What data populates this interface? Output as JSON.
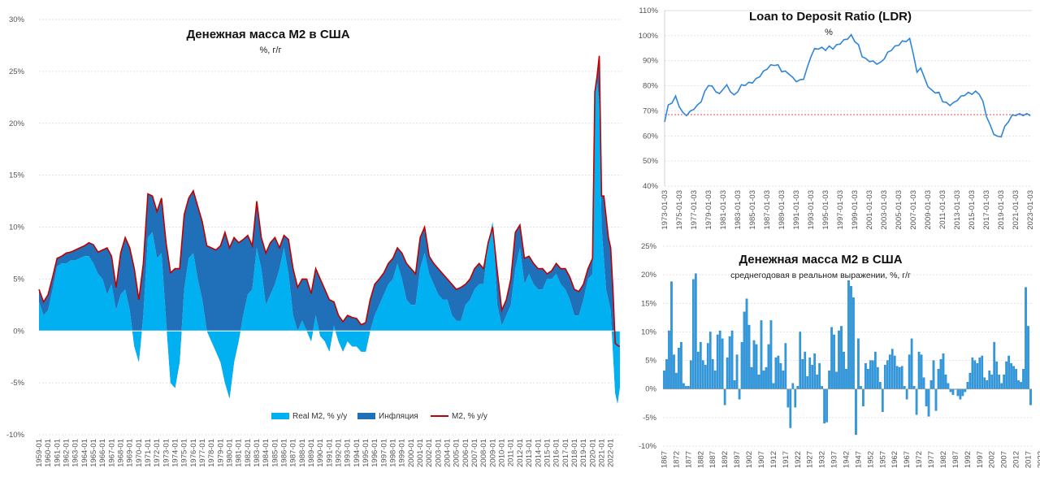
{
  "colors": {
    "real": "#00B0F0",
    "inflation": "#1F70B8",
    "m2_line": "#C00000",
    "ldr_line": "#2E86D9",
    "ldr_ref": "#E03030",
    "grid": "#D9D9D9",
    "bar": "#2E9BE0"
  },
  "chart_data": [
    {
      "type": "area",
      "title": "Денежная масса М2 в США",
      "subtitle": "%, г/г",
      "ylim": [
        -10,
        30
      ],
      "y_ticks": [
        "-10%",
        "-5%",
        "0%",
        "5%",
        "10%",
        "15%",
        "20%",
        "25%",
        "30%"
      ],
      "x_tick_labels": [
        "1959-01",
        "1960-01",
        "1961-01",
        "1962-01",
        "1963-01",
        "1964-01",
        "1965-01",
        "1966-01",
        "1967-01",
        "1968-01",
        "1969-01",
        "1970-01",
        "1971-01",
        "1972-01",
        "1973-01",
        "1974-01",
        "1975-01",
        "1976-01",
        "1977-01",
        "1978-01",
        "1979-01",
        "1980-01",
        "1981-01",
        "1982-01",
        "1983-01",
        "1984-01",
        "1985-01",
        "1986-01",
        "1987-01",
        "1988-01",
        "1989-01",
        "1990-01",
        "1991-01",
        "1992-01",
        "1993-01",
        "1994-01",
        "1995-01",
        "1996-01",
        "1997-01",
        "1998-01",
        "1999-01",
        "2000-01",
        "2001-01",
        "2002-01",
        "2003-01",
        "2004-01",
        "2005-01",
        "2006-01",
        "2007-01",
        "2008-01",
        "2009-01",
        "2010-01",
        "2011-01",
        "2012-01",
        "2013-01",
        "2014-01",
        "2015-01",
        "2016-01",
        "2017-01",
        "2018-01",
        "2019-01",
        "2020-01",
        "2021-01",
        "2022-01"
      ],
      "legend": [
        "Real M2, % y/y",
        "Инфляция",
        "M2, % y/y"
      ],
      "legend_position": "bottom",
      "x": [
        1959.0,
        1959.5,
        1960.0,
        1960.5,
        1961.0,
        1961.5,
        1962.0,
        1962.5,
        1963.0,
        1963.5,
        1964.0,
        1964.5,
        1965.0,
        1965.5,
        1966.0,
        1966.5,
        1967.0,
        1967.5,
        1968.0,
        1968.5,
        1969.0,
        1969.5,
        1970.0,
        1970.5,
        1971.0,
        1971.5,
        1972.0,
        1972.5,
        1973.0,
        1973.5,
        1974.0,
        1974.5,
        1975.0,
        1975.5,
        1976.0,
        1976.5,
        1977.0,
        1977.5,
        1978.0,
        1978.5,
        1979.0,
        1979.5,
        1980.0,
        1980.5,
        1981.0,
        1981.5,
        1982.0,
        1982.5,
        1983.0,
        1983.5,
        1984.0,
        1984.5,
        1985.0,
        1985.5,
        1986.0,
        1986.5,
        1987.0,
        1987.5,
        1988.0,
        1988.5,
        1989.0,
        1989.5,
        1990.0,
        1990.5,
        1991.0,
        1991.5,
        1992.0,
        1992.5,
        1993.0,
        1993.5,
        1994.0,
        1994.5,
        1995.0,
        1995.5,
        1996.0,
        1996.5,
        1997.0,
        1997.5,
        1998.0,
        1998.5,
        1999.0,
        1999.5,
        2000.0,
        2000.5,
        2001.0,
        2001.5,
        2002.0,
        2002.5,
        2003.0,
        2003.5,
        2004.0,
        2004.5,
        2005.0,
        2005.5,
        2006.0,
        2006.5,
        2007.0,
        2007.5,
        2008.0,
        2008.5,
        2009.0,
        2009.5,
        2010.0,
        2010.5,
        2011.0,
        2011.5,
        2012.0,
        2012.5,
        2013.0,
        2013.5,
        2014.0,
        2014.5,
        2015.0,
        2015.5,
        2016.0,
        2016.5,
        2017.0,
        2017.5,
        2018.0,
        2018.5,
        2019.0,
        2019.5,
        2020.0,
        2020.25,
        2020.5,
        2020.75,
        2021.0,
        2021.25,
        2021.5,
        2021.75,
        2022.0,
        2022.25,
        2022.5,
        2022.75,
        2023.0
      ],
      "series": [
        {
          "name": "M2, % y/y",
          "values": [
            4.0,
            2.8,
            3.5,
            5.2,
            7.0,
            7.2,
            7.5,
            7.6,
            7.8,
            8.0,
            8.2,
            8.5,
            8.3,
            7.6,
            7.8,
            8.0,
            7.2,
            4.2,
            7.5,
            9.0,
            8.0,
            6.0,
            3.0,
            6.5,
            13.2,
            13.0,
            11.5,
            12.8,
            8.5,
            5.6,
            6.0,
            6.0,
            11.2,
            12.8,
            13.5,
            12.0,
            10.5,
            8.2,
            8.0,
            7.8,
            8.2,
            9.5,
            8.0,
            9.0,
            8.5,
            8.8,
            9.2,
            8.2,
            12.5,
            9.0,
            7.5,
            8.5,
            9.0,
            8.0,
            9.2,
            8.8,
            6.0,
            4.2,
            5.0,
            5.0,
            3.6,
            6.0,
            5.0,
            4.0,
            3.0,
            2.8,
            1.5,
            0.9,
            1.5,
            1.3,
            1.2,
            0.6,
            0.8,
            3.0,
            4.5,
            5.0,
            5.6,
            6.5,
            7.0,
            8.0,
            7.5,
            6.5,
            6.0,
            5.5,
            9.0,
            10.0,
            7.2,
            6.5,
            6.0,
            5.5,
            5.0,
            4.5,
            4.0,
            4.2,
            4.5,
            5.0,
            6.0,
            6.5,
            6.0,
            8.5,
            10.0,
            5.8,
            2.0,
            3.0,
            5.0,
            9.5,
            10.2,
            7.0,
            7.2,
            6.5,
            6.0,
            6.0,
            5.5,
            5.8,
            6.5,
            6.0,
            6.0,
            5.2,
            4.0,
            3.8,
            4.5,
            6.0,
            7.0,
            23.0,
            24.5,
            26.5,
            13.0,
            13.0,
            11.0,
            9.0,
            8.0,
            4.0,
            -1.2,
            -1.4,
            -1.5
          ]
        },
        {
          "name": "Real M2, % y/y",
          "values": [
            2.8,
            1.5,
            2.0,
            4.0,
            6.2,
            6.5,
            6.5,
            6.8,
            6.8,
            7.0,
            7.2,
            7.2,
            6.5,
            5.5,
            5.0,
            3.5,
            4.5,
            2.0,
            3.5,
            4.0,
            2.0,
            -1.5,
            -3.0,
            1.5,
            9.0,
            9.5,
            7.0,
            7.5,
            1.0,
            -5.0,
            -5.5,
            -3.0,
            4.0,
            7.0,
            7.5,
            5.0,
            3.0,
            0.0,
            -1.0,
            -2.0,
            -3.0,
            -5.0,
            -6.5,
            -3.0,
            -1.0,
            1.5,
            3.5,
            4.0,
            8.0,
            6.0,
            2.5,
            3.5,
            4.5,
            6.0,
            8.0,
            5.5,
            1.5,
            0.0,
            1.0,
            0.0,
            -1.0,
            1.5,
            -0.5,
            -1.0,
            -2.0,
            0.5,
            -1.0,
            -2.0,
            -1.0,
            -1.5,
            -1.5,
            -2.0,
            -2.0,
            0.0,
            1.5,
            2.5,
            3.5,
            4.5,
            5.0,
            6.5,
            5.0,
            3.0,
            2.5,
            2.5,
            6.0,
            7.5,
            5.5,
            4.5,
            3.5,
            3.0,
            3.0,
            1.5,
            1.0,
            1.0,
            2.5,
            3.0,
            4.0,
            4.5,
            4.5,
            8.5,
            10.5,
            2.5,
            0.5,
            1.5,
            2.5,
            6.0,
            8.0,
            4.5,
            5.5,
            4.5,
            4.0,
            4.0,
            5.0,
            5.0,
            5.5,
            4.5,
            4.0,
            3.0,
            1.5,
            1.5,
            3.0,
            5.0,
            5.5,
            23.0,
            24.0,
            22.0,
            10.0,
            7.0,
            4.0,
            3.0,
            2.0,
            -2.0,
            -6.0,
            -7.0,
            -5.5
          ]
        },
        {
          "name": "Инфляция",
          "values": [
            1.2,
            1.3,
            1.5,
            1.2,
            0.8,
            0.7,
            1.0,
            0.8,
            1.0,
            1.0,
            1.0,
            1.3,
            1.8,
            2.1,
            2.8,
            4.5,
            2.7,
            2.2,
            4.0,
            5.0,
            6.0,
            7.5,
            6.0,
            5.0,
            4.2,
            3.5,
            4.5,
            5.3,
            7.5,
            10.6,
            11.5,
            9.0,
            7.2,
            5.8,
            6.0,
            7.0,
            7.5,
            8.2,
            9.0,
            9.8,
            11.2,
            14.5,
            14.5,
            12.0,
            9.5,
            7.3,
            5.7,
            4.2,
            4.5,
            3.0,
            5.0,
            5.0,
            4.5,
            2.0,
            1.2,
            3.3,
            4.5,
            4.2,
            4.0,
            5.0,
            4.6,
            4.5,
            5.5,
            5.0,
            5.0,
            2.3,
            2.5,
            2.9,
            2.5,
            2.8,
            2.7,
            2.6,
            2.8,
            3.0,
            3.0,
            2.5,
            2.1,
            2.0,
            2.0,
            1.5,
            2.5,
            3.5,
            3.5,
            3.0,
            3.0,
            2.5,
            1.7,
            2.0,
            2.5,
            2.5,
            2.0,
            3.0,
            3.0,
            3.2,
            2.0,
            2.0,
            2.0,
            2.0,
            1.5,
            0.0,
            -0.5,
            3.3,
            1.5,
            1.5,
            2.5,
            3.5,
            2.2,
            2.5,
            1.7,
            2.0,
            2.0,
            2.0,
            0.5,
            0.8,
            1.0,
            1.5,
            2.0,
            2.2,
            2.5,
            2.3,
            1.5,
            1.0,
            1.5,
            0.0,
            0.5,
            4.5,
            3.0,
            6.0,
            7.0,
            6.0,
            6.0,
            6.0,
            4.8,
            5.6,
            4.0
          ]
        }
      ]
    },
    {
      "type": "line",
      "title": "Loan to Deposit Ratio (LDR)",
      "subtitle": "%",
      "ylim": [
        40,
        110
      ],
      "y_ticks": [
        "40%",
        "50%",
        "60%",
        "70%",
        "80%",
        "90%",
        "100%",
        "110%"
      ],
      "x_tick_labels": [
        "1973-01-03",
        "1975-01-03",
        "1977-01-03",
        "1979-01-03",
        "1981-01-03",
        "1983-01-03",
        "1985-01-03",
        "1987-01-03",
        "1989-01-03",
        "1991-01-03",
        "1993-01-03",
        "1995-01-03",
        "1997-01-03",
        "1999-01-03",
        "2001-01-03",
        "2003-01-03",
        "2005-01-03",
        "2007-01-03",
        "2009-01-03",
        "2011-01-03",
        "2013-01-03",
        "2015-01-03",
        "2017-01-03",
        "2019-01-03",
        "2021-01-03",
        "2023-01-03"
      ],
      "reference_value": 68.5,
      "x": [
        1973.0,
        1973.5,
        1974.0,
        1974.5,
        1975.0,
        1975.5,
        1976.0,
        1976.5,
        1977.0,
        1977.5,
        1978.0,
        1978.5,
        1979.0,
        1979.5,
        1980.0,
        1980.5,
        1981.0,
        1981.5,
        1982.0,
        1982.5,
        1983.0,
        1983.5,
        1984.0,
        1984.5,
        1985.0,
        1985.5,
        1986.0,
        1986.5,
        1987.0,
        1987.5,
        1988.0,
        1988.5,
        1989.0,
        1989.5,
        1990.0,
        1990.5,
        1991.0,
        1991.5,
        1992.0,
        1992.5,
        1993.0,
        1993.5,
        1994.0,
        1994.5,
        1995.0,
        1995.5,
        1996.0,
        1996.5,
        1997.0,
        1997.5,
        1998.0,
        1998.5,
        1999.0,
        1999.5,
        2000.0,
        2000.5,
        2001.0,
        2001.5,
        2002.0,
        2002.5,
        2003.0,
        2003.5,
        2004.0,
        2004.5,
        2005.0,
        2005.5,
        2006.0,
        2006.5,
        2007.0,
        2007.5,
        2008.0,
        2008.5,
        2009.0,
        2009.5,
        2010.0,
        2010.5,
        2011.0,
        2011.5,
        2012.0,
        2012.5,
        2013.0,
        2013.5,
        2014.0,
        2014.5,
        2015.0,
        2015.5,
        2016.0,
        2016.5,
        2017.0,
        2017.5,
        2018.0,
        2018.5,
        2019.0,
        2019.5,
        2020.0,
        2020.5,
        2021.0,
        2021.5,
        2022.0,
        2022.5,
        2023.0
      ],
      "series": [
        {
          "name": "LDR",
          "values": [
            66.0,
            72.0,
            73.5,
            75.5,
            72.0,
            69.0,
            68.5,
            69.5,
            71.0,
            72.0,
            74.0,
            77.5,
            80.5,
            79.5,
            78.0,
            76.5,
            79.0,
            80.0,
            78.0,
            76.0,
            78.0,
            80.0,
            80.5,
            81.0,
            81.5,
            82.5,
            84.0,
            85.5,
            87.0,
            88.0,
            88.5,
            88.0,
            86.0,
            85.5,
            85.0,
            83.0,
            82.0,
            82.0,
            83.0,
            87.0,
            92.0,
            94.5,
            95.0,
            95.0,
            94.5,
            95.5,
            95.0,
            96.0,
            97.0,
            98.0,
            99.0,
            100.0,
            98.0,
            96.0,
            92.0,
            90.5,
            90.0,
            89.5,
            89.0,
            89.0,
            91.0,
            93.0,
            94.5,
            95.5,
            96.5,
            97.5,
            98.0,
            98.5,
            93.0,
            85.0,
            87.5,
            83.0,
            80.0,
            78.0,
            77.5,
            77.0,
            74.0,
            73.0,
            72.5,
            73.0,
            74.5,
            75.5,
            76.5,
            77.0,
            77.0,
            77.5,
            77.0,
            73.5,
            68.0,
            64.0,
            61.0,
            59.5,
            60.0,
            63.5,
            66.0,
            68.0,
            68.5,
            68.5,
            68.5,
            68.5,
            68.5
          ]
        }
      ]
    },
    {
      "type": "bar",
      "title": "Денежная масса М2 в США",
      "subtitle": "среднегодовая в реальном выражении, %, г/г",
      "ylim": [
        -10,
        25
      ],
      "y_ticks": [
        "-10%",
        "-5%",
        "0%",
        "5%",
        "10%",
        "15%",
        "20%",
        "25%"
      ],
      "x_tick_labels": [
        "1867",
        "1872",
        "1877",
        "1882",
        "1887",
        "1892",
        "1897",
        "1902",
        "1907",
        "1912",
        "1917",
        "1922",
        "1927",
        "1932",
        "1937",
        "1942",
        "1947",
        "1952",
        "1957",
        "1962",
        "1967",
        "1972",
        "1977",
        "1982",
        "1987",
        "1992",
        "1997",
        "2002",
        "2007",
        "2012",
        "2017",
        "2022"
      ],
      "first_year": 1867,
      "series": [
        {
          "name": "Real M2",
          "values": [
            3.2,
            5.2,
            10.2,
            18.8,
            6.0,
            2.8,
            7.2,
            8.2,
            1.0,
            0.5,
            0.5,
            5.0,
            19.2,
            20.2,
            6.5,
            8.2,
            5.0,
            4.2,
            8.0,
            10.0,
            5.2,
            3.2,
            9.5,
            10.2,
            8.8,
            -2.8,
            5.5,
            9.2,
            10.2,
            1.5,
            6.0,
            -1.8,
            8.2,
            13.5,
            15.8,
            11.2,
            3.8,
            8.5,
            7.8,
            2.5,
            12.0,
            3.2,
            3.8,
            7.8,
            12.0,
            1.0,
            5.5,
            5.8,
            4.5,
            3.2,
            8.0,
            -3.2,
            -6.8,
            1.0,
            -3.2,
            0.5,
            10.0,
            5.2,
            6.5,
            2.2,
            5.5,
            4.2,
            6.2,
            2.5,
            4.5,
            0.5,
            -6.0,
            -5.8,
            3.2,
            10.8,
            9.5,
            3.0,
            10.2,
            11.0,
            6.5,
            3.5,
            19.0,
            18.0,
            16.0,
            -8.0,
            8.8,
            0.5,
            -3.0,
            4.5,
            3.5,
            5.0,
            5.0,
            6.5,
            3.8,
            1.2,
            -4.0,
            4.2,
            5.0,
            6.0,
            7.0,
            5.8,
            4.0,
            3.8,
            4.0,
            0.5,
            -1.8,
            6.0,
            8.8,
            0.5,
            -4.5,
            6.5,
            6.0,
            2.0,
            -3.0,
            -4.8,
            1.5,
            5.0,
            -3.8,
            3.5,
            5.2,
            6.2,
            2.5,
            1.0,
            -0.5,
            -1.0,
            0.0,
            -1.2,
            -1.8,
            -1.2,
            -0.5,
            1.2,
            2.8,
            5.5,
            5.0,
            4.5,
            5.5,
            5.8,
            2.0,
            1.5,
            3.2,
            2.5,
            8.2,
            4.8,
            2.5,
            1.0,
            2.5,
            4.8,
            5.8,
            4.5,
            4.0,
            3.5,
            1.5,
            1.2,
            3.5,
            17.8,
            11.0,
            -2.8
          ]
        }
      ]
    }
  ]
}
